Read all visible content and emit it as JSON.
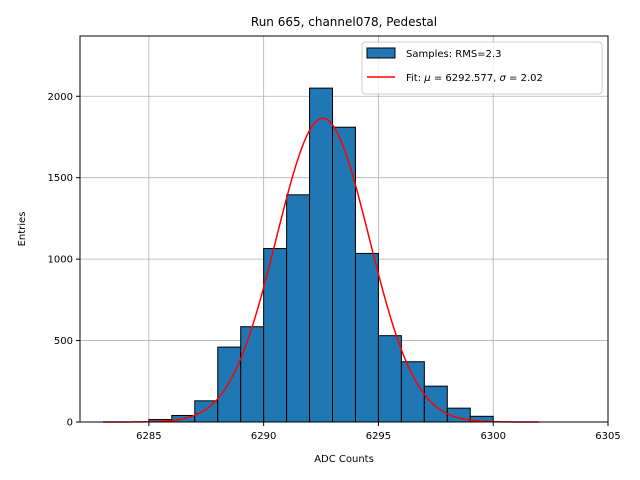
{
  "chart_data": {
    "type": "bar",
    "title": "Run 665, channel078, Pedestal",
    "xlabel": "ADC Counts",
    "ylabel": "Entries",
    "xlim": [
      6282,
      6305
    ],
    "ylim": [
      0,
      2370
    ],
    "grid": true,
    "legend_placement": "top-right",
    "x_ticks": [
      6285,
      6290,
      6295,
      6300,
      6305
    ],
    "y_ticks": [
      0,
      500,
      1000,
      1500,
      2000
    ],
    "bin_width": 1,
    "bins": [
      {
        "x": 6285,
        "value": 15
      },
      {
        "x": 6286,
        "value": 40
      },
      {
        "x": 6287,
        "value": 130
      },
      {
        "x": 6288,
        "value": 460
      },
      {
        "x": 6289,
        "value": 585
      },
      {
        "x": 6290,
        "value": 1065
      },
      {
        "x": 6291,
        "value": 1395
      },
      {
        "x": 6292,
        "value": 2050
      },
      {
        "x": 6293,
        "value": 1810
      },
      {
        "x": 6294,
        "value": 1035
      },
      {
        "x": 6295,
        "value": 530
      },
      {
        "x": 6296,
        "value": 370
      },
      {
        "x": 6297,
        "value": 220
      },
      {
        "x": 6298,
        "value": 85
      },
      {
        "x": 6299,
        "value": 35
      }
    ],
    "fit": {
      "mu": 6292.577,
      "sigma": 2.02,
      "peak": 1865,
      "x_range": [
        6283,
        6302
      ]
    },
    "series": [
      {
        "name": "Samples: RMS=2.3",
        "kind": "histogram",
        "color": "#1f77b4"
      },
      {
        "name_prefix": "Fit: ",
        "mu_text": "6292.577",
        "sigma_text": "2.02",
        "kind": "line",
        "color": "#ff0000"
      }
    ]
  }
}
